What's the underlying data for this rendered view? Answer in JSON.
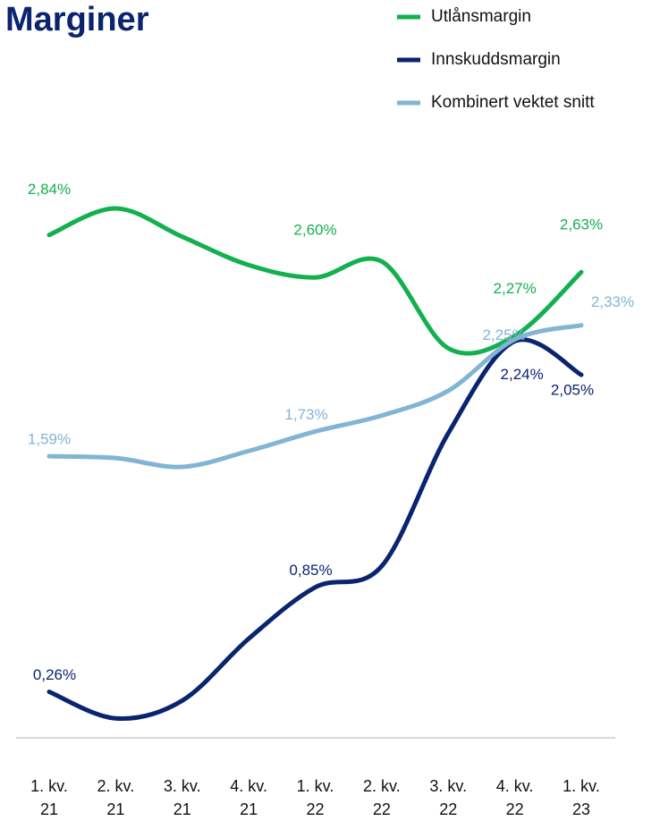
{
  "chart_data": {
    "type": "line",
    "title": "Marginer",
    "categories": [
      "1. kv. 21",
      "2. kv. 21",
      "3. kv. 21",
      "4. kv. 21",
      "1. kv. 22",
      "2. kv. 22",
      "3. kv. 22",
      "4. kv. 22",
      "1. kv. 23"
    ],
    "series": [
      {
        "name": "Utlånsmargin",
        "color": "#12b04f",
        "values": [
          2.84,
          2.99,
          2.83,
          2.67,
          2.6,
          2.69,
          2.2,
          2.27,
          2.63
        ],
        "value_labels": [
          "2,84%",
          null,
          null,
          null,
          "2,60%",
          null,
          null,
          "2,27%",
          "2,63%"
        ]
      },
      {
        "name": "Innskuddsmargin",
        "color": "#0a2470",
        "values": [
          0.26,
          0.11,
          0.21,
          0.56,
          0.85,
          0.97,
          1.72,
          2.24,
          2.05
        ],
        "value_labels": [
          "0,26%",
          null,
          null,
          null,
          "0,85%",
          null,
          null,
          "2,24%",
          "2,05%"
        ]
      },
      {
        "name": "Kombinert vektet snitt",
        "color": "#82b4d4",
        "values": [
          1.59,
          1.58,
          1.53,
          1.62,
          1.73,
          1.82,
          1.96,
          2.25,
          2.33
        ],
        "value_labels": [
          "1,59%",
          null,
          null,
          null,
          "1,73%",
          null,
          null,
          "2,25%",
          "2,33%"
        ]
      }
    ]
  }
}
